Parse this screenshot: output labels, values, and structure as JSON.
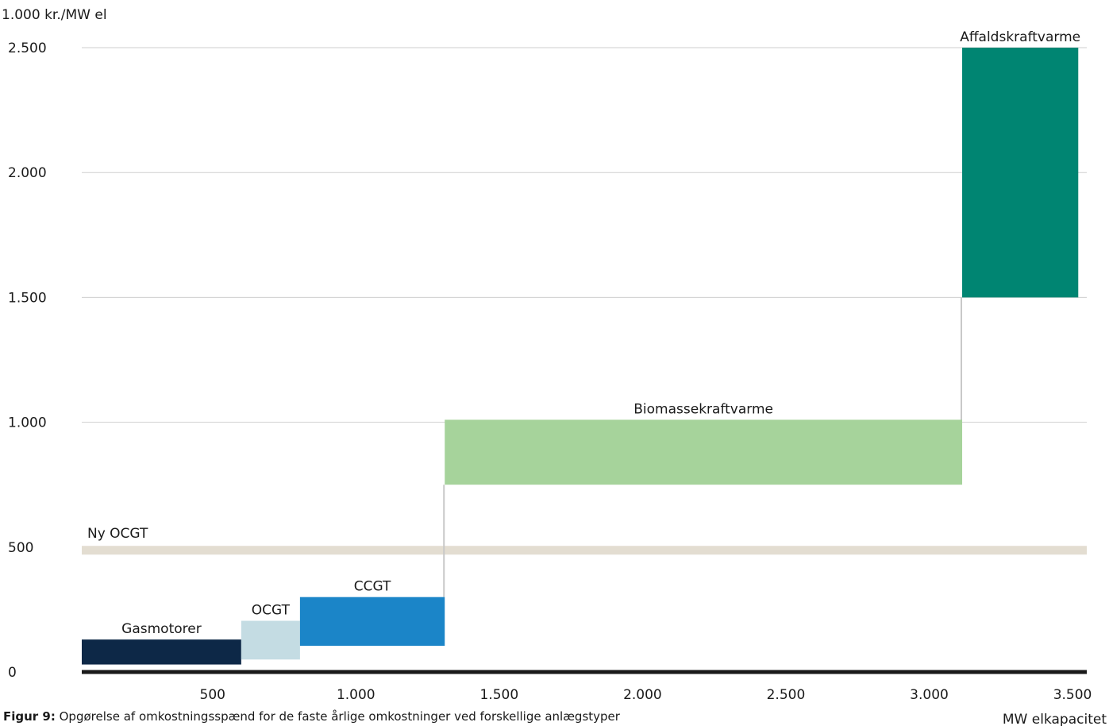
{
  "chart_data": {
    "type": "bar",
    "y_unit_label": "1.000 kr./MW el",
    "x_unit_label": "MW elkapacitet",
    "xlim": [
      0,
      3500
    ],
    "ylim": [
      0,
      2500
    ],
    "x_ticks": [
      {
        "value": 500,
        "label": "500"
      },
      {
        "value": 1000,
        "label": "1.000"
      },
      {
        "value": 1500,
        "label": "1.500"
      },
      {
        "value": 2000,
        "label": "2.000"
      },
      {
        "value": 2500,
        "label": "2.500"
      },
      {
        "value": 3000,
        "label": "3.000"
      },
      {
        "value": 3500,
        "label": "3.500"
      }
    ],
    "y_ticks": [
      {
        "value": 0,
        "label": "0"
      },
      {
        "value": 500,
        "label": "500"
      },
      {
        "value": 1000,
        "label": "1.000"
      },
      {
        "value": 1500,
        "label": "1.500"
      },
      {
        "value": 2000,
        "label": "2.000"
      },
      {
        "value": 2500,
        "label": "2.500"
      }
    ],
    "grid": true,
    "series": [
      {
        "name": "Gasmotorer",
        "x_start": 0,
        "x_end": 600,
        "y_low": 30,
        "y_high": 130,
        "color": "#0d2847"
      },
      {
        "name": "OCGT",
        "x_start": 600,
        "x_end": 805,
        "y_low": 50,
        "y_high": 205,
        "color": "#c4dce3"
      },
      {
        "name": "CCGT",
        "x_start": 805,
        "x_end": 1310,
        "y_low": 105,
        "y_high": 300,
        "color": "#1b85c8"
      },
      {
        "name": "Biomassekraftvarme",
        "x_start": 1310,
        "x_end": 3115,
        "y_low": 750,
        "y_high": 1010,
        "color": "#a6d39b"
      },
      {
        "name": "Affaldskraftvarme",
        "x_start": 3115,
        "x_end": 3520,
        "y_low": 1500,
        "y_high": 2500,
        "color": "#008572"
      }
    ],
    "reference_band": {
      "name": "Ny OCGT",
      "y_low": 470,
      "y_high": 505,
      "color": "#e3ddd1"
    }
  },
  "caption": {
    "prefix": "Figur 9:",
    "text": " Opgørelse af omkostningsspænd for de faste årlige omkostninger ved forskellige anlægstyper"
  }
}
